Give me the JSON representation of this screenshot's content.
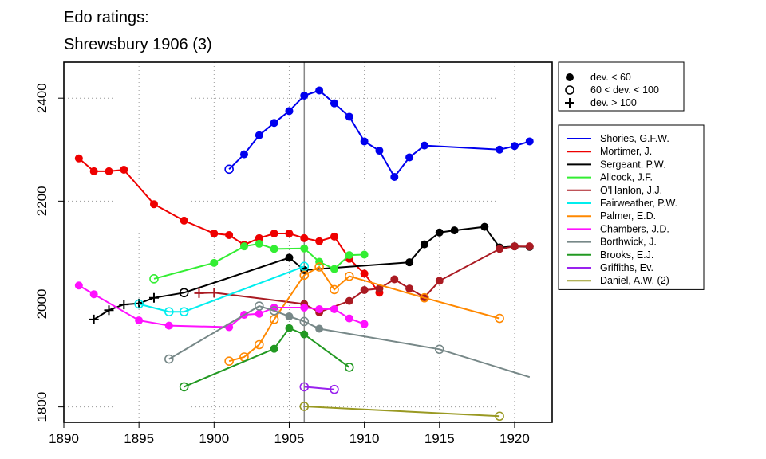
{
  "chart_data": {
    "type": "line",
    "title": "Edo ratings:",
    "subtitle": "Shrewsbury 1906 (3)",
    "xlabel": "",
    "ylabel": "",
    "xlim": [
      1890,
      1922.5
    ],
    "ylim": [
      1770,
      2470
    ],
    "xticks": [
      1890,
      1895,
      1900,
      1905,
      1910,
      1915,
      1920
    ],
    "yticks": [
      1800,
      2000,
      2200,
      2400
    ],
    "vline": 1906,
    "grid": "dotted",
    "marker_legend": [
      {
        "marker": "filled",
        "label": "dev. < 60"
      },
      {
        "marker": "open",
        "label": "60 < dev. < 100"
      },
      {
        "marker": "plus",
        "label": "dev. > 100"
      }
    ],
    "series": [
      {
        "name": "Shories, G.F.W.",
        "color": "#0000ee",
        "points": [
          [
            1901,
            2262,
            "o"
          ],
          [
            1902,
            2291,
            "f"
          ],
          [
            1903,
            2328,
            "f"
          ],
          [
            1904,
            2352,
            "f"
          ],
          [
            1905,
            2375,
            "f"
          ],
          [
            1906,
            2405,
            "f"
          ],
          [
            1907,
            2415,
            "f"
          ],
          [
            1908,
            2390,
            "f"
          ],
          [
            1909,
            2364,
            "f"
          ],
          [
            1910,
            2316,
            "f"
          ],
          [
            1911,
            2298,
            "f"
          ],
          [
            1912,
            2247,
            "f"
          ],
          [
            1913,
            2285,
            "f"
          ],
          [
            1914,
            2308,
            "f"
          ],
          [
            1919,
            2300,
            "f"
          ],
          [
            1920,
            2307,
            "f"
          ],
          [
            1921,
            2316,
            "f"
          ]
        ]
      },
      {
        "name": "Mortimer, J.",
        "color": "#ee0000",
        "points": [
          [
            1891,
            2283,
            "f"
          ],
          [
            1892,
            2258,
            "f"
          ],
          [
            1893,
            2258,
            "f"
          ],
          [
            1894,
            2261,
            "f"
          ],
          [
            1896,
            2194,
            "f"
          ],
          [
            1898,
            2162,
            "f"
          ],
          [
            1900,
            2137,
            "f"
          ],
          [
            1901,
            2134,
            "f"
          ],
          [
            1902,
            2115,
            "f"
          ],
          [
            1903,
            2128,
            "f"
          ],
          [
            1904,
            2137,
            "f"
          ],
          [
            1905,
            2137,
            "f"
          ],
          [
            1906,
            2128,
            "f"
          ],
          [
            1907,
            2122,
            "f"
          ],
          [
            1908,
            2131,
            "f"
          ],
          [
            1909,
            2088,
            "f"
          ],
          [
            1910,
            2059,
            "f"
          ],
          [
            1911,
            2022,
            "f"
          ]
        ]
      },
      {
        "name": "Sergeant, P.W.",
        "color": "#000000",
        "points": [
          [
            1892,
            1970,
            "p"
          ],
          [
            1893,
            1988,
            "p"
          ],
          [
            1894,
            1999,
            "p"
          ],
          [
            1895,
            2001,
            "p"
          ],
          [
            1896,
            2012,
            "p"
          ],
          [
            1898,
            2022,
            "o"
          ],
          [
            1905,
            2090,
            "f"
          ],
          [
            1906,
            2066,
            "f"
          ],
          [
            1913,
            2081,
            "f"
          ],
          [
            1914,
            2116,
            "f"
          ],
          [
            1915,
            2139,
            "f"
          ],
          [
            1916,
            2143,
            "f"
          ],
          [
            1918,
            2150,
            "f"
          ],
          [
            1919,
            2110,
            "f"
          ],
          [
            1920,
            2112,
            "f"
          ],
          [
            1921,
            2111,
            "f"
          ]
        ]
      },
      {
        "name": "Allcock, J.F.",
        "color": "#33ee33",
        "points": [
          [
            1896,
            2049,
            "o"
          ],
          [
            1900,
            2080,
            "f"
          ],
          [
            1902,
            2112,
            "f"
          ],
          [
            1903,
            2117,
            "f"
          ],
          [
            1904,
            2107,
            "f"
          ],
          [
            1906,
            2108,
            "f"
          ],
          [
            1907,
            2082,
            "f"
          ],
          [
            1908,
            2068,
            "f"
          ],
          [
            1909,
            2095,
            "f"
          ],
          [
            1910,
            2096,
            "f"
          ]
        ]
      },
      {
        "name": "O'Hanlon, J.J.",
        "color": "#aa1a22",
        "points": [
          [
            1899,
            2021,
            "p"
          ],
          [
            1900,
            2022,
            "p"
          ],
          [
            1906,
            2000,
            "f"
          ],
          [
            1907,
            1984,
            "f"
          ],
          [
            1909,
            2006,
            "f"
          ],
          [
            1910,
            2027,
            "f"
          ],
          [
            1911,
            2030,
            "f"
          ],
          [
            1912,
            2048,
            "f"
          ],
          [
            1913,
            2030,
            "f"
          ],
          [
            1914,
            2013,
            "f"
          ],
          [
            1915,
            2045,
            "f"
          ],
          [
            1919,
            2107,
            "f"
          ],
          [
            1920,
            2112,
            "f"
          ],
          [
            1921,
            2112,
            "f"
          ]
        ]
      },
      {
        "name": "Fairweather, P.W.",
        "color": "#00eeee",
        "points": [
          [
            1895,
            2000,
            "o"
          ],
          [
            1897,
            1985,
            "o"
          ],
          [
            1898,
            1985,
            "o"
          ],
          [
            1906,
            2073,
            "o"
          ]
        ]
      },
      {
        "name": "Palmer, E.D.",
        "color": "#ff8800",
        "points": [
          [
            1901,
            1889,
            "o"
          ],
          [
            1902,
            1897,
            "o"
          ],
          [
            1903,
            1921,
            "o"
          ],
          [
            1904,
            1970,
            "o"
          ],
          [
            1906,
            2056,
            "o"
          ],
          [
            1907,
            2072,
            "o"
          ],
          [
            1908,
            2028,
            "o"
          ],
          [
            1909,
            2054,
            "o"
          ],
          [
            1914,
            2012,
            "o"
          ],
          [
            1919,
            1972,
            "o"
          ]
        ]
      },
      {
        "name": "Chambers, J.D.",
        "color": "#ff11ff",
        "points": [
          [
            1891,
            2036,
            "f"
          ],
          [
            1892,
            2019,
            "f"
          ],
          [
            1895,
            1968,
            "f"
          ],
          [
            1897,
            1958,
            "f"
          ],
          [
            1901,
            1955,
            "f"
          ],
          [
            1902,
            1979,
            "f"
          ],
          [
            1903,
            1981,
            "f"
          ],
          [
            1904,
            1993,
            "f"
          ],
          [
            1906,
            1993,
            "f"
          ],
          [
            1907,
            1990,
            "f"
          ],
          [
            1908,
            1990,
            "f"
          ],
          [
            1909,
            1972,
            "f"
          ],
          [
            1910,
            1961,
            "f"
          ]
        ]
      },
      {
        "name": "Borthwick, J.",
        "color": "#778888",
        "points": [
          [
            1897,
            1893,
            "o"
          ],
          [
            1903,
            1996,
            "o"
          ],
          [
            1904,
            1987,
            "o"
          ],
          [
            1905,
            1976,
            "f"
          ],
          [
            1906,
            1966,
            "o"
          ],
          [
            1907,
            1952,
            "f"
          ],
          [
            1915,
            1912,
            "o"
          ],
          [
            1921,
            1858,
            "n"
          ]
        ]
      },
      {
        "name": "Brooks, E.J.",
        "color": "#229922",
        "points": [
          [
            1898,
            1839,
            "o"
          ],
          [
            1904,
            1913,
            "f"
          ],
          [
            1905,
            1953,
            "f"
          ],
          [
            1906,
            1941,
            "f"
          ],
          [
            1909,
            1877,
            "o"
          ]
        ]
      },
      {
        "name": "Griffiths, Ev.",
        "color": "#9922ee",
        "points": [
          [
            1906,
            1839,
            "o"
          ],
          [
            1908,
            1834,
            "o"
          ]
        ]
      },
      {
        "name": "Daniel, A.W. (2)",
        "color": "#999922",
        "points": [
          [
            1906,
            1801,
            "o"
          ],
          [
            1919,
            1782,
            "o"
          ]
        ]
      }
    ]
  }
}
